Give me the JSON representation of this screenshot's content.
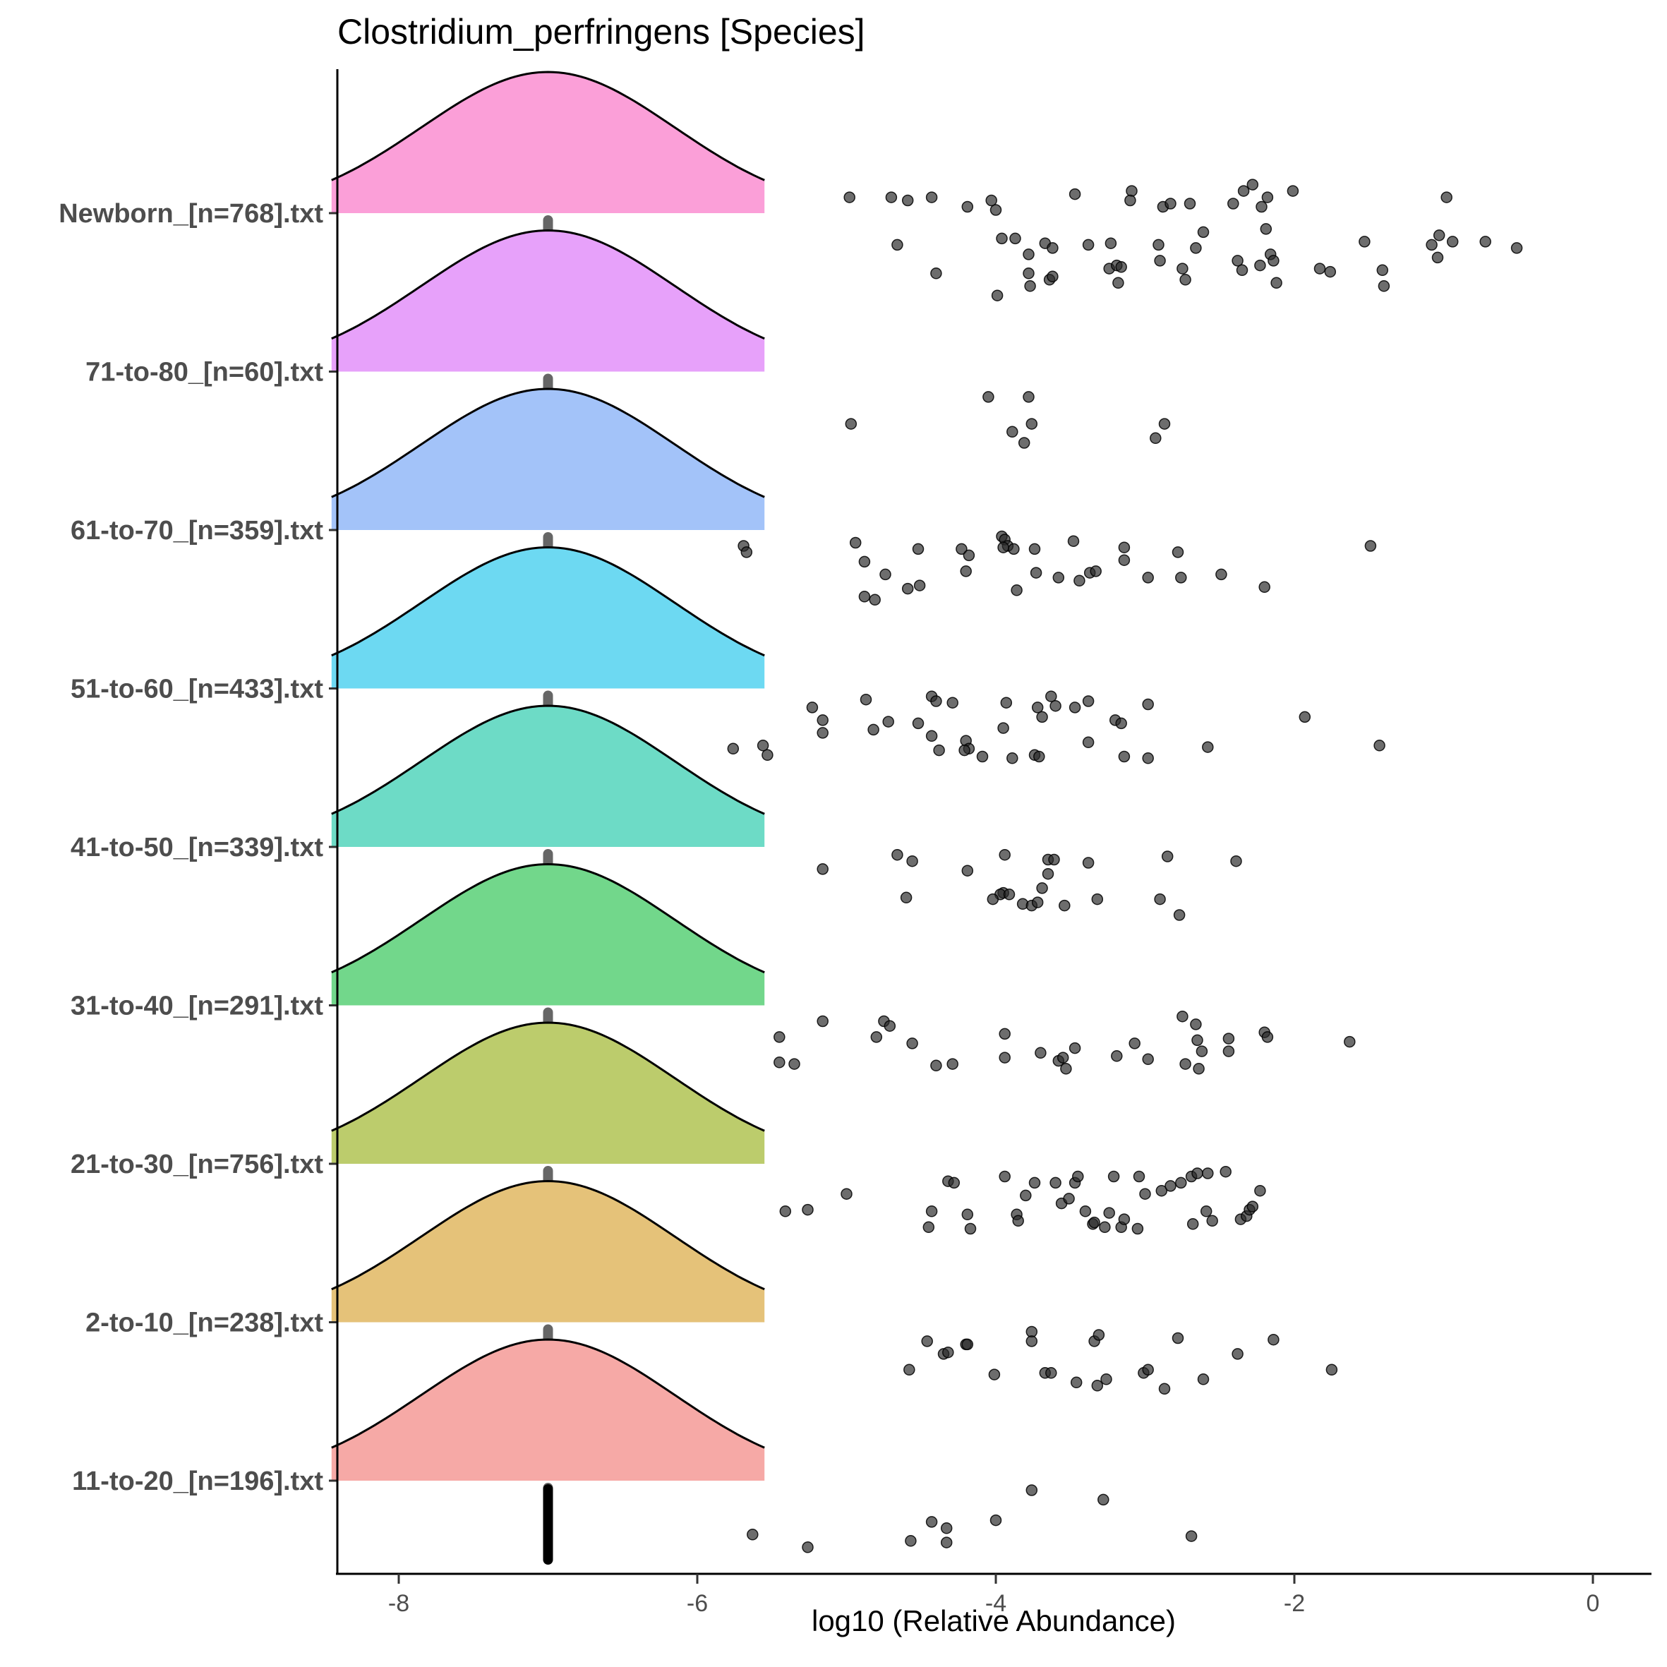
{
  "chart_data": {
    "type": "ridgeline-jitter",
    "title": "Clostridium_perfringens [Species]",
    "xlabel": "log10 (Relative Abundance)",
    "ylabel": "",
    "xlim": [
      -8.4,
      0.4
    ],
    "xticks": [
      -8,
      -6,
      -4,
      -2,
      0
    ],
    "grid": false,
    "legend": "none",
    "series": [
      {
        "name": "Newborn_[n=768].txt",
        "color": "#fb9fd8",
        "peak_x": -7.0,
        "points": [
          [
            -4.98,
            0.1
          ],
          [
            -4.7,
            0.1
          ],
          [
            -4.59,
            0.08
          ],
          [
            -4.43,
            0.1
          ],
          [
            -4.66,
            -0.2
          ],
          [
            -4.4,
            -0.38
          ],
          [
            -4.19,
            0.04
          ],
          [
            -4.03,
            0.08
          ],
          [
            -4.0,
            0.02
          ],
          [
            -3.96,
            -0.16
          ],
          [
            -3.78,
            -0.26
          ],
          [
            -3.78,
            -0.38
          ],
          [
            -3.77,
            -0.46
          ],
          [
            -3.87,
            -0.16
          ],
          [
            -3.67,
            -0.19
          ],
          [
            -3.62,
            -0.22
          ],
          [
            -3.64,
            -0.42
          ],
          [
            -3.62,
            -0.4
          ],
          [
            -3.99,
            -0.52
          ],
          [
            -3.47,
            0.12
          ],
          [
            -3.38,
            -0.2
          ],
          [
            -3.23,
            -0.19
          ],
          [
            -3.24,
            -0.35
          ],
          [
            -3.19,
            -0.33
          ],
          [
            -3.16,
            -0.34
          ],
          [
            -3.18,
            -0.44
          ],
          [
            -3.09,
            0.14
          ],
          [
            -3.1,
            0.08
          ],
          [
            -2.91,
            -0.2
          ],
          [
            -2.9,
            -0.3
          ],
          [
            -2.88,
            0.04
          ],
          [
            -2.83,
            0.06
          ],
          [
            -2.75,
            -0.35
          ],
          [
            -2.73,
            -0.42
          ],
          [
            -2.7,
            0.06
          ],
          [
            -2.66,
            -0.22
          ],
          [
            -2.61,
            -0.12
          ],
          [
            -2.41,
            0.06
          ],
          [
            -2.38,
            -0.3
          ],
          [
            -2.35,
            -0.36
          ],
          [
            -2.34,
            0.14
          ],
          [
            -2.28,
            0.18
          ],
          [
            -2.22,
            0.04
          ],
          [
            -2.18,
            0.1
          ],
          [
            -2.19,
            -0.1
          ],
          [
            -2.16,
            -0.26
          ],
          [
            -2.14,
            -0.3
          ],
          [
            -2.23,
            -0.33
          ],
          [
            -2.12,
            -0.44
          ],
          [
            -2.01,
            0.14
          ],
          [
            -1.83,
            -0.35
          ],
          [
            -1.76,
            -0.37
          ],
          [
            -1.53,
            -0.18
          ],
          [
            -1.41,
            -0.36
          ],
          [
            -1.4,
            -0.46
          ],
          [
            -1.08,
            -0.2
          ],
          [
            -1.04,
            -0.28
          ],
          [
            -1.03,
            -0.14
          ],
          [
            -0.98,
            0.1
          ],
          [
            -0.94,
            -0.18
          ],
          [
            -0.72,
            -0.18
          ],
          [
            -0.51,
            -0.22
          ]
        ]
      },
      {
        "name": "71-to-80_[n=60].txt",
        "color": "#e7a1fa",
        "peak_x": -7.0,
        "points": [
          [
            -4.05,
            -0.16
          ],
          [
            -3.78,
            -0.16
          ],
          [
            -3.89,
            -0.38
          ],
          [
            -3.81,
            -0.45
          ],
          [
            -3.76,
            -0.33
          ],
          [
            -4.97,
            -0.33
          ],
          [
            -2.87,
            -0.33
          ],
          [
            -2.93,
            -0.42
          ]
        ]
      },
      {
        "name": "61-to-70_[n=359].txt",
        "color": "#a3c3f9",
        "peak_x": -7.0,
        "points": [
          [
            -5.69,
            -0.1
          ],
          [
            -5.67,
            -0.14
          ],
          [
            -4.94,
            -0.08
          ],
          [
            -4.88,
            -0.2
          ],
          [
            -4.74,
            -0.28
          ],
          [
            -4.52,
            -0.12
          ],
          [
            -4.23,
            -0.12
          ],
          [
            -4.18,
            -0.16
          ],
          [
            -4.2,
            -0.26
          ],
          [
            -4.51,
            -0.35
          ],
          [
            -4.59,
            -0.37
          ],
          [
            -4.88,
            -0.42
          ],
          [
            -4.81,
            -0.44
          ],
          [
            -3.96,
            -0.04
          ],
          [
            -3.94,
            -0.06
          ],
          [
            -3.92,
            -0.1
          ],
          [
            -3.88,
            -0.12
          ],
          [
            -3.95,
            -0.11
          ],
          [
            -3.74,
            -0.12
          ],
          [
            -3.73,
            -0.27
          ],
          [
            -3.86,
            -0.38
          ],
          [
            -3.58,
            -0.3
          ],
          [
            -3.48,
            -0.07
          ],
          [
            -3.44,
            -0.32
          ],
          [
            -3.37,
            -0.27
          ],
          [
            -3.33,
            -0.26
          ],
          [
            -3.14,
            -0.11
          ],
          [
            -3.14,
            -0.19
          ],
          [
            -2.98,
            -0.3
          ],
          [
            -2.78,
            -0.14
          ],
          [
            -2.76,
            -0.3
          ],
          [
            -2.49,
            -0.28
          ],
          [
            -2.2,
            -0.36
          ],
          [
            -1.49,
            -0.1
          ]
        ]
      },
      {
        "name": "51-to-60_[n=433].txt",
        "color": "#6dd9f2",
        "peak_x": -7.0,
        "points": [
          [
            -5.76,
            -0.38
          ],
          [
            -5.56,
            -0.36
          ],
          [
            -5.53,
            -0.42
          ],
          [
            -5.23,
            -0.12
          ],
          [
            -5.16,
            -0.2
          ],
          [
            -5.16,
            -0.28
          ],
          [
            -4.87,
            -0.07
          ],
          [
            -4.82,
            -0.26
          ],
          [
            -4.72,
            -0.21
          ],
          [
            -4.43,
            -0.05
          ],
          [
            -4.4,
            -0.08
          ],
          [
            -4.52,
            -0.22
          ],
          [
            -4.43,
            -0.3
          ],
          [
            -4.38,
            -0.39
          ],
          [
            -4.29,
            -0.09
          ],
          [
            -4.2,
            -0.33
          ],
          [
            -4.18,
            -0.38
          ],
          [
            -4.21,
            -0.39
          ],
          [
            -4.09,
            -0.43
          ],
          [
            -3.93,
            -0.09
          ],
          [
            -3.95,
            -0.25
          ],
          [
            -3.89,
            -0.44
          ],
          [
            -3.72,
            -0.12
          ],
          [
            -3.69,
            -0.18
          ],
          [
            -3.63,
            -0.05
          ],
          [
            -3.6,
            -0.11
          ],
          [
            -3.74,
            -0.42
          ],
          [
            -3.71,
            -0.43
          ],
          [
            -3.47,
            -0.12
          ],
          [
            -3.38,
            -0.08
          ],
          [
            -3.38,
            -0.34
          ],
          [
            -3.2,
            -0.2
          ],
          [
            -3.16,
            -0.22
          ],
          [
            -3.14,
            -0.43
          ],
          [
            -2.98,
            -0.1
          ],
          [
            -2.98,
            -0.44
          ],
          [
            -2.58,
            -0.37
          ],
          [
            -1.93,
            -0.18
          ],
          [
            -1.43,
            -0.36
          ]
        ]
      },
      {
        "name": "41-to-50_[n=339].txt",
        "color": "#6ddbc6",
        "peak_x": -7.0,
        "points": [
          [
            -5.16,
            -0.14
          ],
          [
            -4.66,
            -0.05
          ],
          [
            -4.56,
            -0.09
          ],
          [
            -4.6,
            -0.32
          ],
          [
            -4.19,
            -0.15
          ],
          [
            -3.94,
            -0.05
          ],
          [
            -3.95,
            -0.29
          ],
          [
            -3.97,
            -0.3
          ],
          [
            -3.91,
            -0.3
          ],
          [
            -4.02,
            -0.33
          ],
          [
            -3.82,
            -0.36
          ],
          [
            -3.76,
            -0.37
          ],
          [
            -3.72,
            -0.35
          ],
          [
            -3.65,
            -0.08
          ],
          [
            -3.61,
            -0.08
          ],
          [
            -3.65,
            -0.17
          ],
          [
            -3.69,
            -0.26
          ],
          [
            -3.54,
            -0.37
          ],
          [
            -3.38,
            -0.1
          ],
          [
            -3.32,
            -0.33
          ],
          [
            -2.85,
            -0.06
          ],
          [
            -2.9,
            -0.33
          ],
          [
            -2.77,
            -0.43
          ],
          [
            -2.39,
            -0.09
          ]
        ]
      },
      {
        "name": "31-to-40_[n=291].txt",
        "color": "#72d78b",
        "peak_x": -7.0,
        "points": [
          [
            -5.45,
            -0.2
          ],
          [
            -5.45,
            -0.36
          ],
          [
            -5.35,
            -0.37
          ],
          [
            -5.16,
            -0.1
          ],
          [
            -4.8,
            -0.2
          ],
          [
            -4.75,
            -0.1
          ],
          [
            -4.71,
            -0.13
          ],
          [
            -4.56,
            -0.24
          ],
          [
            -4.4,
            -0.38
          ],
          [
            -4.29,
            -0.37
          ],
          [
            -3.94,
            -0.18
          ],
          [
            -3.94,
            -0.33
          ],
          [
            -3.7,
            -0.3
          ],
          [
            -3.58,
            -0.35
          ],
          [
            -3.55,
            -0.33
          ],
          [
            -3.53,
            -0.4
          ],
          [
            -3.47,
            -0.27
          ],
          [
            -3.19,
            -0.32
          ],
          [
            -3.07,
            -0.24
          ],
          [
            -2.98,
            -0.34
          ],
          [
            -2.75,
            -0.07
          ],
          [
            -2.73,
            -0.37
          ],
          [
            -2.66,
            -0.12
          ],
          [
            -2.65,
            -0.22
          ],
          [
            -2.64,
            -0.4
          ],
          [
            -2.62,
            -0.29
          ],
          [
            -2.44,
            -0.21
          ],
          [
            -2.44,
            -0.29
          ],
          [
            -2.2,
            -0.17
          ],
          [
            -2.18,
            -0.2
          ],
          [
            -1.63,
            -0.23
          ]
        ]
      },
      {
        "name": "21-to-30_[n=756].txt",
        "color": "#bccc6c",
        "peak_x": -7.0,
        "points": [
          [
            -5.41,
            -0.3
          ],
          [
            -5.26,
            -0.29
          ],
          [
            -5.0,
            -0.19
          ],
          [
            -4.32,
            -0.11
          ],
          [
            -4.28,
            -0.12
          ],
          [
            -4.43,
            -0.3
          ],
          [
            -4.45,
            -0.4
          ],
          [
            -4.19,
            -0.32
          ],
          [
            -4.17,
            -0.41
          ],
          [
            -3.94,
            -0.08
          ],
          [
            -3.86,
            -0.32
          ],
          [
            -3.85,
            -0.36
          ],
          [
            -3.8,
            -0.2
          ],
          [
            -3.74,
            -0.12
          ],
          [
            -3.6,
            -0.12
          ],
          [
            -3.56,
            -0.25
          ],
          [
            -3.51,
            -0.22
          ],
          [
            -3.47,
            -0.12
          ],
          [
            -3.45,
            -0.08
          ],
          [
            -3.4,
            -0.3
          ],
          [
            -3.35,
            -0.38
          ],
          [
            -3.34,
            -0.37
          ],
          [
            -3.27,
            -0.4
          ],
          [
            -3.21,
            -0.08
          ],
          [
            -3.24,
            -0.31
          ],
          [
            -3.16,
            -0.4
          ],
          [
            -3.14,
            -0.35
          ],
          [
            -3.04,
            -0.08
          ],
          [
            -3.05,
            -0.41
          ],
          [
            -3.0,
            -0.19
          ],
          [
            -2.89,
            -0.17
          ],
          [
            -2.83,
            -0.14
          ],
          [
            -2.76,
            -0.12
          ],
          [
            -2.69,
            -0.08
          ],
          [
            -2.65,
            -0.06
          ],
          [
            -2.68,
            -0.38
          ],
          [
            -2.58,
            -0.06
          ],
          [
            -2.59,
            -0.3
          ],
          [
            -2.55,
            -0.36
          ],
          [
            -2.46,
            -0.05
          ],
          [
            -2.36,
            -0.35
          ],
          [
            -2.32,
            -0.33
          ],
          [
            -2.3,
            -0.29
          ],
          [
            -2.28,
            -0.27
          ],
          [
            -2.23,
            -0.17
          ]
        ]
      },
      {
        "name": "2-to-10_[n=238].txt",
        "color": "#e5c279",
        "peak_x": -7.0,
        "points": [
          [
            -4.58,
            -0.3
          ],
          [
            -4.46,
            -0.12
          ],
          [
            -4.35,
            -0.2
          ],
          [
            -4.32,
            -0.19
          ],
          [
            -4.2,
            -0.14
          ],
          [
            -4.19,
            -0.14
          ],
          [
            -4.01,
            -0.33
          ],
          [
            -3.76,
            -0.06
          ],
          [
            -3.76,
            -0.12
          ],
          [
            -3.67,
            -0.32
          ],
          [
            -3.63,
            -0.32
          ],
          [
            -3.46,
            -0.38
          ],
          [
            -3.34,
            -0.12
          ],
          [
            -3.31,
            -0.08
          ],
          [
            -3.32,
            -0.4
          ],
          [
            -3.26,
            -0.36
          ],
          [
            -3.01,
            -0.32
          ],
          [
            -2.98,
            -0.3
          ],
          [
            -2.87,
            -0.42
          ],
          [
            -2.78,
            -0.1
          ],
          [
            -2.61,
            -0.36
          ],
          [
            -2.38,
            -0.2
          ],
          [
            -2.14,
            -0.11
          ],
          [
            -1.75,
            -0.3
          ]
        ]
      },
      {
        "name": "11-to-20_[n=196].txt",
        "color": "#f6a9a6",
        "peak_x": -7.0,
        "points": [
          [
            -5.63,
            -0.34
          ],
          [
            -5.26,
            -0.42
          ],
          [
            -4.57,
            -0.38
          ],
          [
            -4.43,
            -0.26
          ],
          [
            -4.33,
            -0.3
          ],
          [
            -4.33,
            -0.39
          ],
          [
            -4.0,
            -0.25
          ],
          [
            -3.76,
            -0.06
          ],
          [
            -3.28,
            -0.12
          ],
          [
            -2.69,
            -0.35
          ]
        ]
      }
    ]
  }
}
